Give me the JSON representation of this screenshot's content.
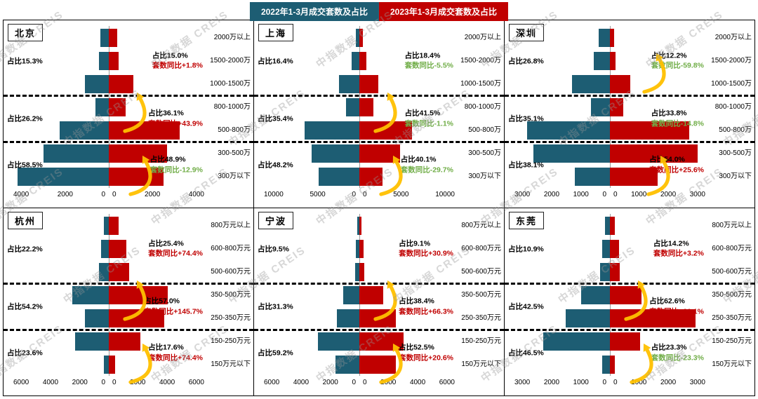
{
  "watermark": "中指数据 CREIS",
  "legend_2022": {
    "label": "2022年1-3月成交套数及占比",
    "color": "#1d5d73"
  },
  "legend_2023": {
    "label": "2023年1-3月成交套数及占比",
    "color": "#c00000"
  },
  "colors": {
    "bar_2022": "#1d5d73",
    "bar_2023": "#c00000",
    "yoy_up": "#c00000",
    "yoy_down": "#70ad47",
    "arrow": "#ffc000"
  },
  "chart_data": [
    {
      "type": "bar",
      "variant": "butterfly",
      "city": "北京",
      "axis_max": 4000,
      "x_ticks_left": [
        "4000",
        "2000",
        "0"
      ],
      "x_ticks_right": [
        "0",
        "2000",
        "4000"
      ],
      "tiers": [
        "2000万以上",
        "1500-2000万",
        "1000-1500万",
        "800-1000万",
        "500-800万",
        "300-500万",
        "300万以下"
      ],
      "series": [
        {
          "name": "2022年1-3月成交套数及占比",
          "values": [
            350,
            400,
            1000,
            560,
            2050,
            2750,
            3830
          ]
        },
        {
          "name": "2023年1-3月成交套数及占比",
          "values": [
            350,
            420,
            1030,
            700,
            2970,
            2450,
            2300
          ]
        }
      ],
      "groups": [
        {
          "left_share": "占比15.3%",
          "right_share": "占比15.0%",
          "right_yoy": "套数同比+1.8%",
          "yoy_trend": "up"
        },
        {
          "left_share": "占比26.2%",
          "right_share": "占比36.1%",
          "right_yoy": "套数同比+43.9%",
          "yoy_trend": "up"
        },
        {
          "left_share": "占比58.5%",
          "right_share": "占比48.9%",
          "right_yoy": "套数同比-12.9%",
          "yoy_trend": "down"
        }
      ]
    },
    {
      "type": "bar",
      "variant": "butterfly",
      "city": "上海",
      "axis_max": 10000,
      "x_ticks_left": [
        "10000",
        "5000",
        "0"
      ],
      "x_ticks_right": [
        "0",
        "5000",
        "10000"
      ],
      "tiers": [
        "2000万以上",
        "1500-2000万",
        "1000-1500万",
        "800-1000万",
        "500-800万",
        "300-500万",
        "300万以下"
      ],
      "series": [
        {
          "name": "2022年1-3月成交套数及占比",
          "values": [
            400,
            800,
            2100,
            1400,
            5700,
            5000,
            4300
          ]
        },
        {
          "name": "2023年1-3月成交套数及占比",
          "values": [
            380,
            760,
            1960,
            1500,
            5500,
            4300,
            2460
          ]
        }
      ],
      "groups": [
        {
          "left_share": "占比16.4%",
          "right_share": "占比18.4%",
          "right_yoy": "套数同比-5.5%",
          "yoy_trend": "down"
        },
        {
          "left_share": "占比35.4%",
          "right_share": "占比41.5%",
          "right_yoy": "套数同比-1.1%",
          "yoy_trend": "down"
        },
        {
          "left_share": "占比48.2%",
          "right_share": "占比40.1%",
          "right_yoy": "套数同比-29.7%",
          "yoy_trend": "down"
        }
      ]
    },
    {
      "type": "bar",
      "variant": "butterfly",
      "city": "深圳",
      "axis_max": 3000,
      "x_ticks_left": [
        "3000",
        "2000",
        "1000",
        "0"
      ],
      "x_ticks_right": [
        "0",
        "1000",
        "2000",
        "3000"
      ],
      "tiers": [
        "2000万以上",
        "1500-2000万",
        "1000-1500万",
        "800-1000万",
        "500-800万",
        "300-500万",
        "300万以下"
      ],
      "series": [
        {
          "name": "2022年1-3月成交套数及占比",
          "values": [
            350,
            500,
            1200,
            600,
            2600,
            2400,
            1100
          ]
        },
        {
          "name": "2023年1-3月成交套数及占比",
          "values": [
            130,
            180,
            640,
            420,
            2500,
            2750,
            1490
          ]
        }
      ],
      "groups": [
        {
          "left_share": "占比26.8%",
          "right_share": "占比12.2%",
          "right_yoy": "套数同比-59.8%",
          "yoy_trend": "down"
        },
        {
          "left_share": "占比35.1%",
          "right_share": "占比33.8%",
          "right_yoy": "套数同比-14.8%",
          "yoy_trend": "down"
        },
        {
          "left_share": "占比38.1%",
          "right_share": "占比54.0%",
          "right_yoy": "套数同比+25.6%",
          "yoy_trend": "up"
        }
      ]
    },
    {
      "type": "bar",
      "variant": "butterfly",
      "city": "杭州",
      "axis_max": 6000,
      "x_ticks_left": [
        "6000",
        "4000",
        "2000",
        "0"
      ],
      "x_ticks_right": [
        "0",
        "2000",
        "4000",
        "6000"
      ],
      "tiers": [
        "800万元以上",
        "600-800万元",
        "500-600万元",
        "350-500万元",
        "250-350万元",
        "150-250万元",
        "150万元以下"
      ],
      "series": [
        {
          "name": "2022年1-3月成交套数及占比",
          "values": [
            300,
            500,
            600,
            2300,
            1500,
            2100,
            300
          ]
        },
        {
          "name": "2023年1-3月成交套数及占比",
          "values": [
            600,
            1100,
            1300,
            3700,
            3500,
            2000,
            400
          ]
        }
      ],
      "groups": [
        {
          "left_share": "占比22.2%",
          "right_share": "占比25.4%",
          "right_yoy": "套数同比+74.4%",
          "yoy_trend": "up"
        },
        {
          "left_share": "占比54.2%",
          "right_share": "占比57.0%",
          "right_yoy": "套数同比+145.7%",
          "yoy_trend": "up"
        },
        {
          "left_share": "占比23.6%",
          "right_share": "占比17.6%",
          "right_yoy": "套数同比+74.4%",
          "yoy_trend": "up"
        }
      ]
    },
    {
      "type": "bar",
      "variant": "butterfly",
      "city": "宁波",
      "axis_max": 6000,
      "x_ticks_left": [
        "6000",
        "4000",
        "2000",
        "0"
      ],
      "x_ticks_right": [
        "0",
        "2000",
        "4000",
        "6000"
      ],
      "tiers": [
        "800万元以上",
        "600-800万元",
        "500-600万元",
        "350-500万元",
        "250-350万元",
        "150-250万元",
        "150万元以下"
      ],
      "series": [
        {
          "name": "2022年1-3月成交套数及占比",
          "values": [
            120,
            200,
            250,
            1000,
            1400,
            2600,
            1500
          ]
        },
        {
          "name": "2023年1-3月成交套数及占比",
          "values": [
            150,
            280,
            330,
            1500,
            2300,
            2800,
            2300
          ]
        }
      ],
      "groups": [
        {
          "left_share": "占比9.5%",
          "right_share": "占比9.1%",
          "right_yoy": "套数同比+30.9%",
          "yoy_trend": "up"
        },
        {
          "left_share": "占比31.3%",
          "right_share": "占比38.4%",
          "right_yoy": "套数同比+66.3%",
          "yoy_trend": "up"
        },
        {
          "left_share": "占比59.2%",
          "right_share": "占比52.5%",
          "right_yoy": "套数同比+20.6%",
          "yoy_trend": "up"
        }
      ]
    },
    {
      "type": "bar",
      "variant": "butterfly",
      "city": "东莞",
      "axis_max": 3000,
      "x_ticks_left": [
        "3000",
        "2000",
        "1000",
        "0"
      ],
      "x_ticks_right": [
        "0",
        "1000",
        "2000",
        "3000"
      ],
      "tiers": [
        "800万元以上",
        "600-800万元",
        "500-600万元",
        "350-500万元",
        "250-350万元",
        "150-250万元",
        "150万元以下"
      ],
      "series": [
        {
          "name": "2022年1-3月成交套数及占比",
          "values": [
            150,
            250,
            300,
            900,
            1400,
            2100,
            250
          ]
        },
        {
          "name": "2023年1-3月成交套数及占比",
          "values": [
            150,
            280,
            300,
            1000,
            2700,
            950,
            150
          ]
        }
      ],
      "groups": [
        {
          "left_share": "占比10.9%",
          "right_share": "占比14.2%",
          "right_yoy": "套数同比+3.2%",
          "yoy_trend": "up"
        },
        {
          "left_share": "占比42.5%",
          "right_share": "占比62.6%",
          "right_yoy": "套数同比+20.1%",
          "yoy_trend": "up"
        },
        {
          "left_share": "占比46.5%",
          "right_share": "占比23.3%",
          "right_yoy": "套数同比-23.3%",
          "yoy_trend": "down"
        }
      ]
    }
  ]
}
